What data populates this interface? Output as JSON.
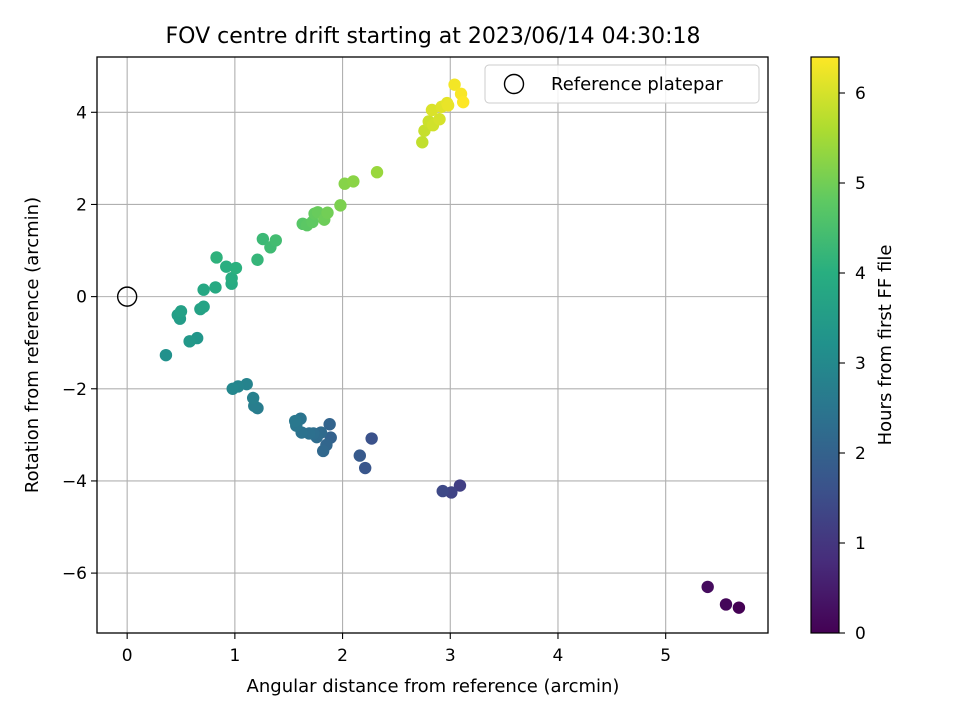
{
  "chart_data": {
    "type": "scatter",
    "title": "FOV centre drift starting at 2023/06/14 04:30:18",
    "xlabel": "Angular distance from reference (arcmin)",
    "ylabel": "Rotation from reference (arcmin)",
    "xlim": [
      -0.28,
      5.95
    ],
    "ylim": [
      -7.3,
      5.2
    ],
    "x_ticks": [
      0,
      1,
      2,
      3,
      4,
      5
    ],
    "y_ticks": [
      -6,
      -4,
      -2,
      0,
      2,
      4
    ],
    "grid": true,
    "legend": {
      "placement": "top-right",
      "entries": [
        "Reference platepar"
      ]
    },
    "colorbar": {
      "label": "Hours from first FF file",
      "range": [
        0,
        6.4
      ],
      "ticks": [
        0,
        1,
        2,
        3,
        4,
        5,
        6
      ],
      "colormap": "viridis"
    },
    "reference": {
      "x": 0,
      "y": 0,
      "label": "Reference platepar"
    },
    "points": [
      [
        5.68,
        -6.75,
        0.0
      ],
      [
        5.56,
        -6.68,
        0.1
      ],
      [
        5.39,
        -6.3,
        0.2
      ],
      [
        3.09,
        -4.1,
        1.2
      ],
      [
        3.01,
        -4.25,
        1.3
      ],
      [
        2.93,
        -4.22,
        1.4
      ],
      [
        2.27,
        -3.08,
        1.6
      ],
      [
        2.21,
        -3.72,
        1.7
      ],
      [
        2.16,
        -3.45,
        1.8
      ],
      [
        1.89,
        -3.06,
        2.0
      ],
      [
        1.88,
        -2.77,
        2.05
      ],
      [
        1.85,
        -3.22,
        2.1
      ],
      [
        1.82,
        -3.35,
        2.15
      ],
      [
        1.8,
        -2.95,
        2.2
      ],
      [
        1.76,
        -3.05,
        2.25
      ],
      [
        1.73,
        -2.97,
        2.3
      ],
      [
        1.69,
        -2.97,
        2.35
      ],
      [
        1.62,
        -2.95,
        2.4
      ],
      [
        1.61,
        -2.65,
        2.45
      ],
      [
        1.57,
        -2.8,
        2.5
      ],
      [
        1.56,
        -2.7,
        2.55
      ],
      [
        1.21,
        -2.42,
        2.65
      ],
      [
        1.18,
        -2.37,
        2.7
      ],
      [
        1.17,
        -2.2,
        2.75
      ],
      [
        1.11,
        -1.9,
        2.85
      ],
      [
        1.03,
        -1.95,
        2.9
      ],
      [
        0.98,
        -2.0,
        2.95
      ],
      [
        0.36,
        -1.27,
        3.2
      ],
      [
        0.65,
        -0.9,
        3.35
      ],
      [
        0.58,
        -0.97,
        3.4
      ],
      [
        0.49,
        -0.48,
        3.5
      ],
      [
        0.47,
        -0.4,
        3.55
      ],
      [
        0.5,
        -0.32,
        3.6
      ],
      [
        0.68,
        -0.27,
        3.65
      ],
      [
        0.71,
        -0.22,
        3.7
      ],
      [
        0.71,
        0.15,
        3.8
      ],
      [
        0.82,
        0.2,
        3.85
      ],
      [
        0.97,
        0.28,
        3.9
      ],
      [
        0.97,
        0.4,
        3.95
      ],
      [
        0.92,
        0.65,
        4.0
      ],
      [
        1.01,
        0.62,
        4.05
      ],
      [
        0.83,
        0.85,
        4.1
      ],
      [
        1.21,
        0.8,
        4.2
      ],
      [
        1.26,
        1.25,
        4.3
      ],
      [
        1.33,
        1.07,
        4.35
      ],
      [
        1.38,
        1.22,
        4.4
      ],
      [
        1.63,
        1.58,
        4.7
      ],
      [
        1.67,
        1.55,
        4.75
      ],
      [
        1.72,
        1.62,
        4.8
      ],
      [
        1.74,
        1.8,
        4.85
      ],
      [
        1.77,
        1.83,
        4.9
      ],
      [
        1.83,
        1.67,
        4.95
      ],
      [
        1.86,
        1.82,
        5.0
      ],
      [
        1.98,
        1.98,
        5.1
      ],
      [
        2.02,
        2.45,
        5.2
      ],
      [
        2.1,
        2.5,
        5.25
      ],
      [
        2.32,
        2.7,
        5.4
      ],
      [
        2.74,
        3.35,
        5.8
      ],
      [
        2.76,
        3.6,
        5.85
      ],
      [
        2.8,
        3.8,
        5.9
      ],
      [
        2.84,
        3.72,
        5.95
      ],
      [
        2.9,
        3.85,
        6.0
      ],
      [
        2.83,
        4.05,
        6.05
      ],
      [
        2.92,
        4.12,
        6.1
      ],
      [
        2.97,
        4.2,
        6.15
      ],
      [
        2.98,
        4.15,
        6.2
      ],
      [
        3.04,
        4.6,
        6.3
      ],
      [
        3.1,
        4.4,
        6.35
      ],
      [
        3.12,
        4.22,
        6.4
      ]
    ]
  }
}
